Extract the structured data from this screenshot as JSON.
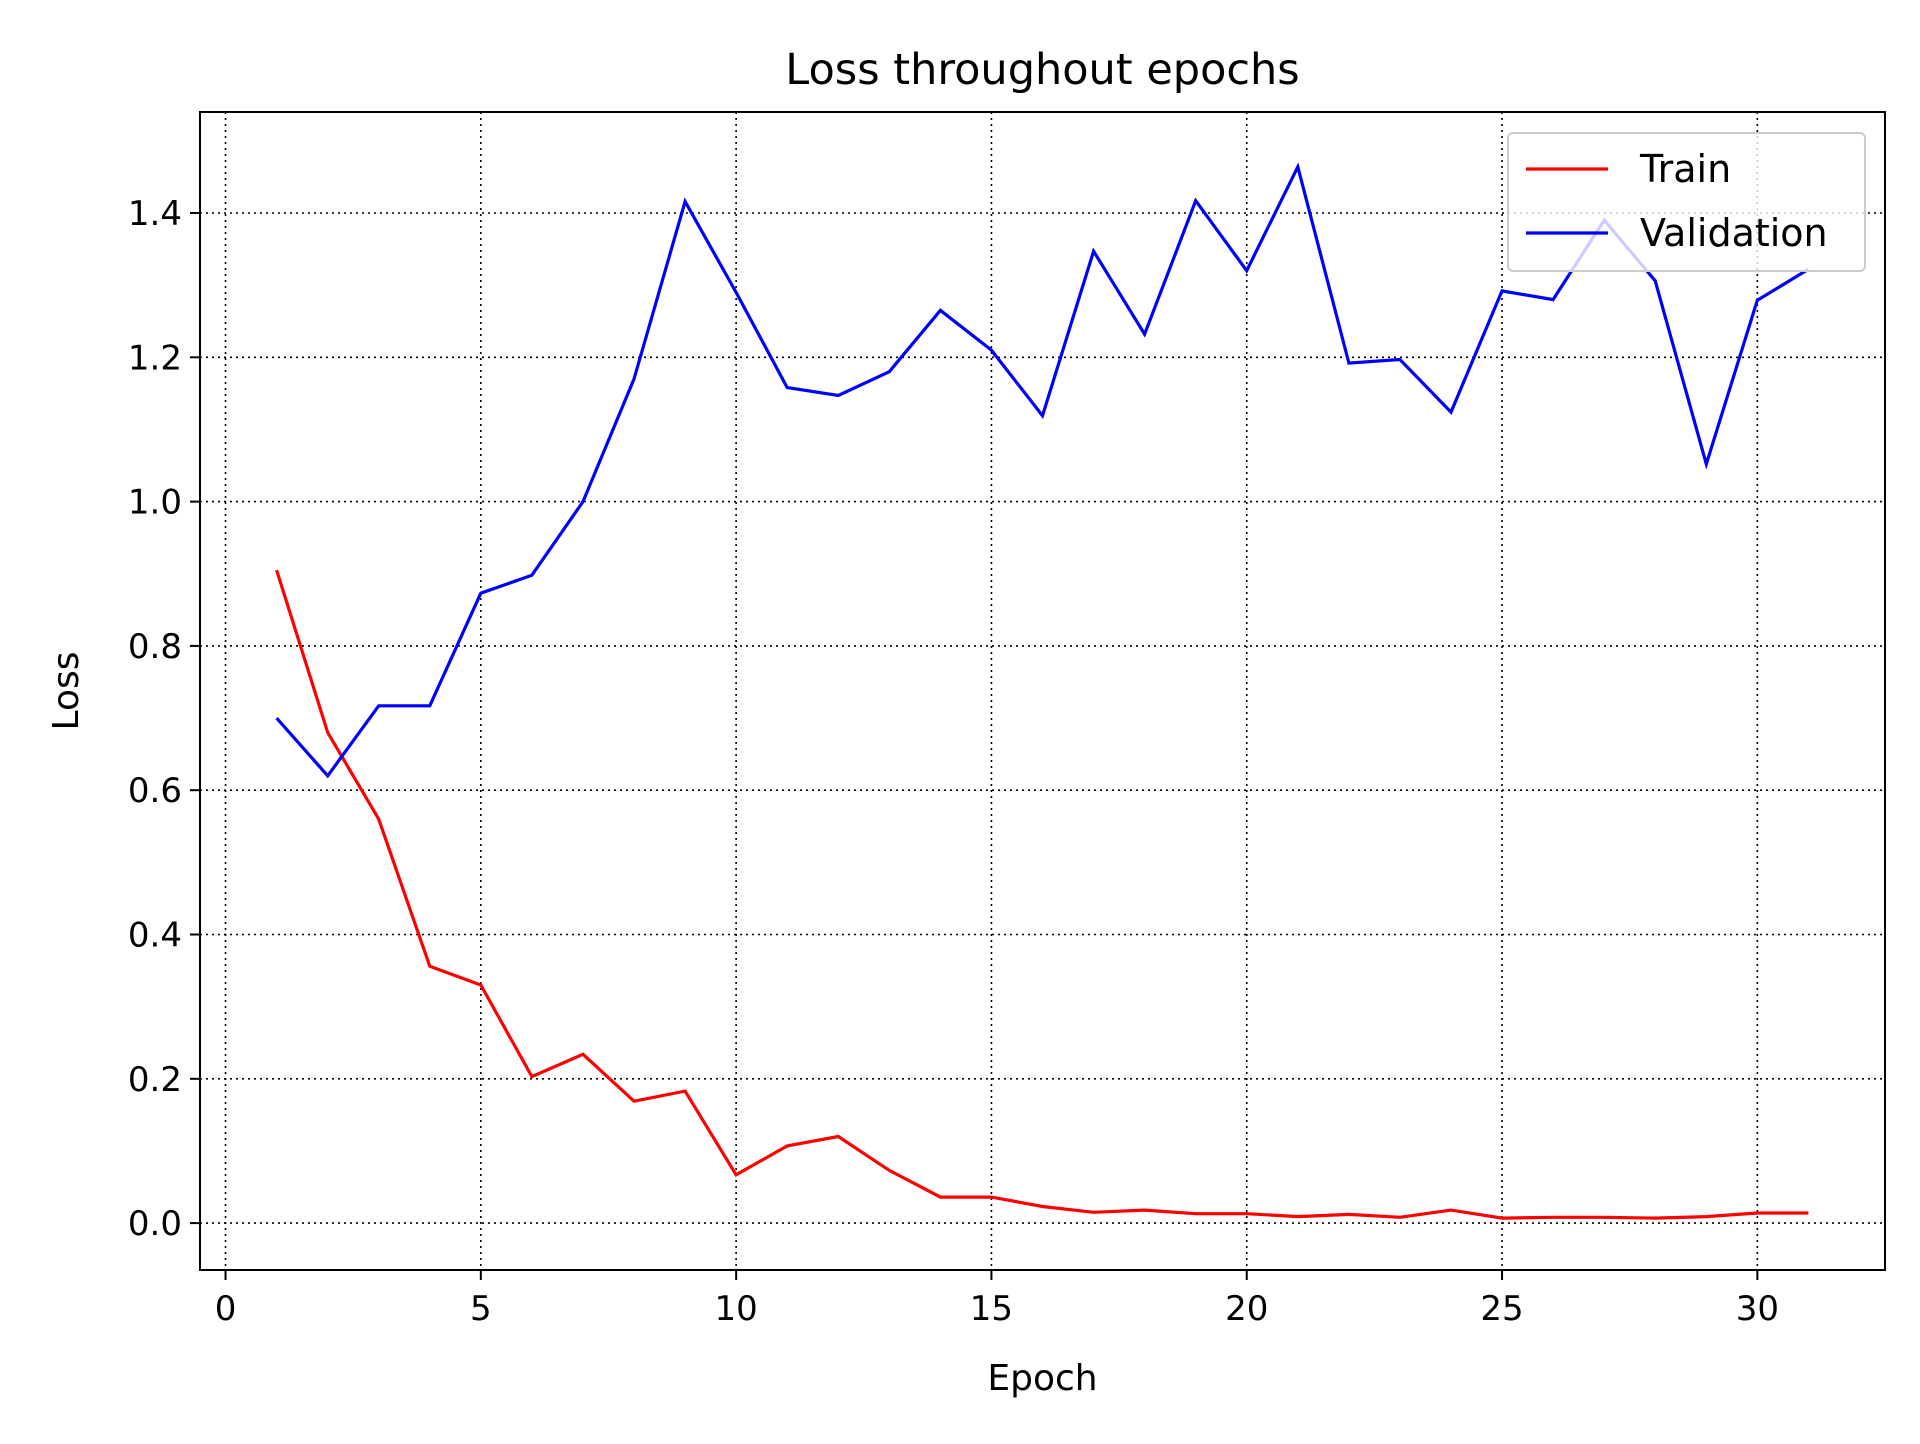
{
  "chart_data": {
    "type": "line",
    "title": "Loss throughout epochs",
    "xlabel": "Epoch",
    "ylabel": "Loss",
    "xlim": [
      -0.5,
      32.5
    ],
    "ylim": [
      -0.065,
      1.54
    ],
    "xticks": [
      0,
      5,
      10,
      15,
      20,
      25,
      30
    ],
    "xtick_labels": [
      "0",
      "5",
      "10",
      "15",
      "20",
      "25",
      "30"
    ],
    "yticks": [
      0.0,
      0.2,
      0.4,
      0.6,
      0.8,
      1.0,
      1.2,
      1.4
    ],
    "ytick_labels": [
      "0.0",
      "0.2",
      "0.4",
      "0.6",
      "0.8",
      "1.0",
      "1.2",
      "1.4"
    ],
    "grid": true,
    "grid_style": "dotted",
    "legend_position": "top-right",
    "x": [
      1,
      2,
      3,
      4,
      5,
      6,
      7,
      8,
      9,
      10,
      11,
      12,
      13,
      14,
      15,
      16,
      17,
      18,
      19,
      20,
      21,
      22,
      23,
      24,
      25,
      26,
      27,
      28,
      29,
      30,
      31
    ],
    "series": [
      {
        "name": "Train",
        "color": "#ff0000",
        "values": [
          0.905,
          0.68,
          0.56,
          0.356,
          0.33,
          0.203,
          0.234,
          0.169,
          0.183,
          0.067,
          0.107,
          0.12,
          0.073,
          0.036,
          0.036,
          0.023,
          0.015,
          0.018,
          0.013,
          0.013,
          0.009,
          0.012,
          0.008,
          0.018,
          0.007,
          0.008,
          0.008,
          0.007,
          0.009,
          0.014,
          0.014
        ]
      },
      {
        "name": "Validation",
        "color": "#0000ff",
        "values": [
          0.7,
          0.62,
          0.717,
          0.717,
          0.873,
          0.898,
          1.0,
          1.17,
          1.416,
          1.29,
          1.158,
          1.147,
          1.18,
          1.265,
          1.21,
          1.119,
          1.347,
          1.232,
          1.417,
          1.32,
          1.464,
          1.192,
          1.197,
          1.124,
          1.292,
          1.28,
          1.39,
          1.306,
          1.052,
          1.279,
          1.322
        ]
      }
    ]
  }
}
